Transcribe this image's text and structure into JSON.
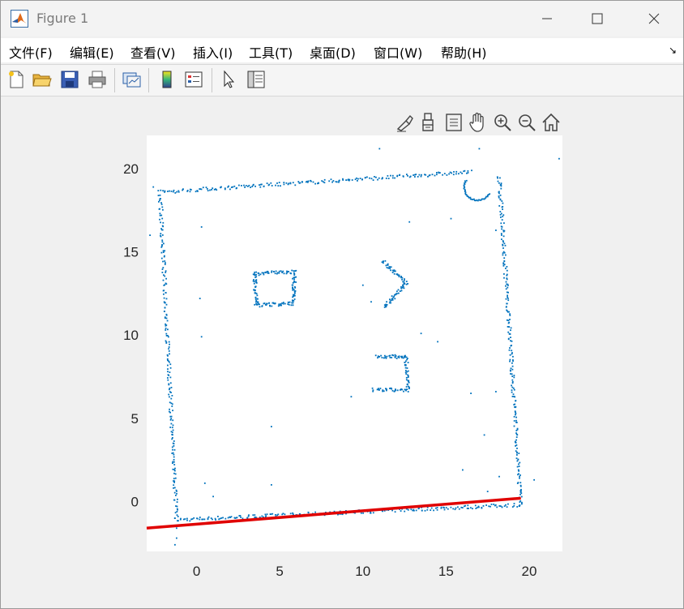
{
  "window": {
    "title": "Figure 1"
  },
  "menu": {
    "items": [
      "文件(F)",
      "编辑(E)",
      "查看(V)",
      "插入(I)",
      "工具(T)",
      "桌面(D)",
      "窗口(W)",
      "帮助(H)"
    ]
  },
  "toolbar": {
    "icons": [
      "new-figure-icon",
      "open-file-icon",
      "save-icon",
      "print-icon",
      "link-plot-icon",
      "insert-colorbar-icon",
      "insert-legend-icon",
      "edit-plot-arrow-icon",
      "property-inspector-icon"
    ]
  },
  "axes_toolbar": {
    "icons": [
      "brush-icon",
      "data-tips-icon",
      "restore-view-icon",
      "pan-hand-icon",
      "zoom-in-icon",
      "zoom-out-icon",
      "home-icon"
    ]
  },
  "colors": {
    "scan_points": "#0072bd",
    "line": "#e00000",
    "axes_bg": "#ffffff",
    "figure_bg": "#f0f0f0"
  },
  "chart_data": {
    "type": "scatter",
    "xlim": [
      -3,
      22
    ],
    "ylim": [
      -3,
      22
    ],
    "xticks": [
      0,
      5,
      10,
      15,
      20
    ],
    "yticks": [
      0,
      5,
      10,
      15,
      20
    ],
    "xtick_labels": [
      "0",
      "5",
      "10",
      "15",
      "20"
    ],
    "ytick_labels": [
      "0",
      "5",
      "10",
      "15",
      "20"
    ],
    "grid": false,
    "series": [
      {
        "kind": "points",
        "color": "#0072bd",
        "segments": [
          {
            "from": [
              -1.2,
              -1.1
            ],
            "to": [
              19.5,
              -0.2
            ],
            "n": 220
          },
          {
            "from": [
              19.5,
              -0.2
            ],
            "to": [
              18.2,
              19.6
            ],
            "n": 220
          },
          {
            "from": [
              -2.2,
              18.6
            ],
            "to": [
              16.5,
              19.8
            ],
            "n": 200
          },
          {
            "from": [
              -2.2,
              18.6
            ],
            "to": [
              -1.2,
              -1.1
            ],
            "n": 200
          },
          {
            "from": [
              3.5,
              13.7
            ],
            "to": [
              5.8,
              13.8
            ],
            "n": 40
          },
          {
            "from": [
              3.5,
              13.7
            ],
            "to": [
              3.6,
              11.8
            ],
            "n": 40
          },
          {
            "from": [
              3.6,
              11.8
            ],
            "to": [
              5.8,
              11.9
            ],
            "n": 40
          },
          {
            "from": [
              5.8,
              11.9
            ],
            "to": [
              5.9,
              13.8
            ],
            "n": 40
          },
          {
            "from": [
              11.2,
              14.5
            ],
            "to": [
              12.6,
              13.1
            ],
            "n": 40
          },
          {
            "from": [
              12.6,
              13.1
            ],
            "to": [
              11.3,
              11.7
            ],
            "n": 40
          },
          {
            "from": [
              10.8,
              8.7
            ],
            "to": [
              12.6,
              8.7
            ],
            "n": 35
          },
          {
            "from": [
              12.6,
              8.7
            ],
            "to": [
              12.7,
              6.7
            ],
            "n": 35
          },
          {
            "from": [
              10.6,
              6.7
            ],
            "to": [
              12.7,
              6.7
            ],
            "n": 35
          }
        ],
        "arc": {
          "center": [
            16.9,
            18.9
          ],
          "radius": 0.8,
          "start_deg": 150,
          "end_deg": 330,
          "n": 40
        },
        "scatter": [
          [
            11.0,
            21.2
          ],
          [
            17.0,
            21.2
          ],
          [
            21.8,
            20.6
          ],
          [
            -2.6,
            18.9
          ],
          [
            -2.8,
            16.0
          ],
          [
            0.3,
            16.5
          ],
          [
            12.8,
            16.8
          ],
          [
            15.3,
            17.0
          ],
          [
            18.0,
            16.3
          ],
          [
            10.0,
            13.0
          ],
          [
            10.5,
            12.0
          ],
          [
            0.2,
            12.2
          ],
          [
            13.5,
            10.1
          ],
          [
            14.5,
            9.6
          ],
          [
            0.3,
            9.9
          ],
          [
            9.3,
            6.3
          ],
          [
            16.5,
            6.5
          ],
          [
            18.0,
            6.6
          ],
          [
            17.3,
            4.0
          ],
          [
            4.5,
            4.5
          ],
          [
            16.0,
            1.9
          ],
          [
            4.5,
            1.0
          ],
          [
            0.5,
            1.1
          ],
          [
            18.2,
            1.5
          ],
          [
            20.3,
            1.3
          ],
          [
            -1.2,
            -1.6
          ],
          [
            -1.2,
            -2.2
          ],
          [
            -1.3,
            -2.6
          ],
          [
            1.0,
            0.3
          ],
          [
            17.5,
            0.6
          ]
        ]
      },
      {
        "kind": "line",
        "color": "#e00000",
        "x": [
          -3,
          19.5
        ],
        "y": [
          -1.6,
          0.2
        ]
      }
    ]
  }
}
